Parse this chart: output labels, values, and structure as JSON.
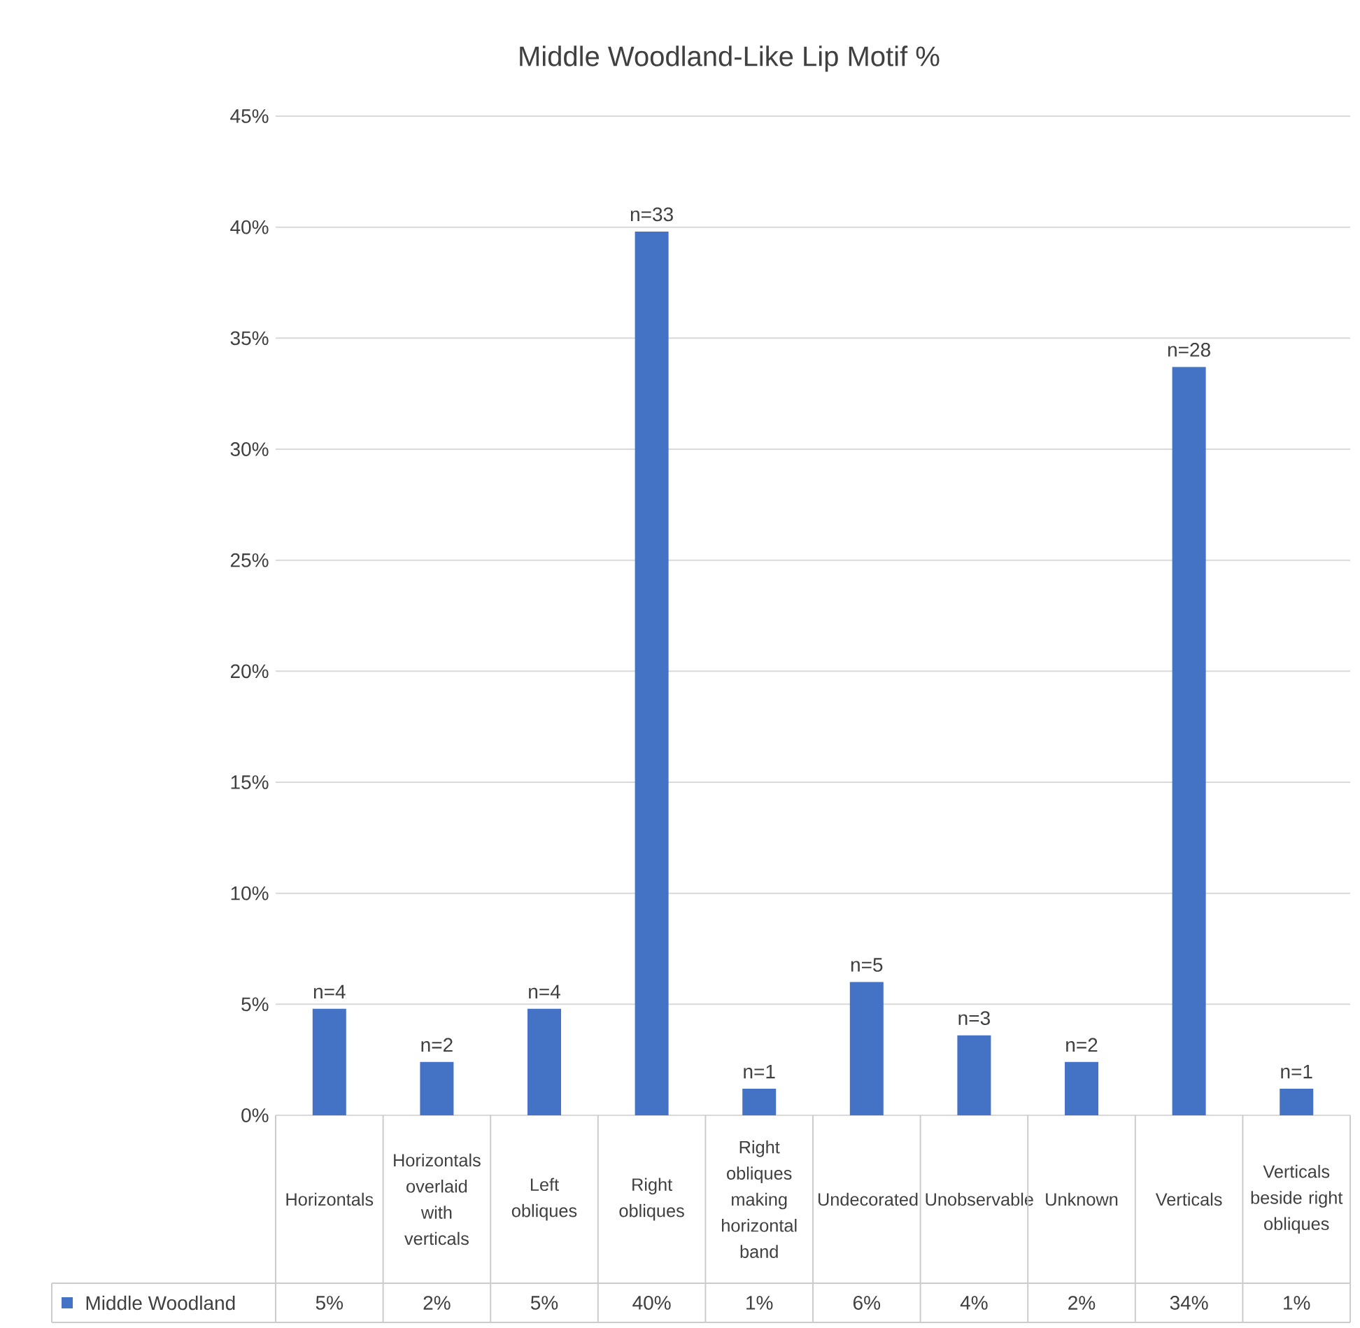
{
  "chart_data": {
    "type": "bar",
    "title": "Middle Woodland-Like Lip Motif %",
    "categories": [
      "Horizontals",
      "Horizontals overlaid with verticals",
      "Left obliques",
      "Right obliques",
      "Right obliques making horizontal band",
      "Undecorated",
      "Unobservable",
      "Unknown",
      "Verticals",
      "Verticals beside right obliques"
    ],
    "series": [
      {
        "name": "Middle Woodland",
        "color": "#4472c4",
        "values": [
          4.8,
          2.4,
          4.8,
          39.8,
          1.2,
          6.0,
          3.6,
          2.4,
          33.7,
          1.2
        ],
        "value_labels": [
          "5%",
          "2%",
          "5%",
          "40%",
          "1%",
          "6%",
          "4%",
          "2%",
          "34%",
          "1%"
        ]
      }
    ],
    "annotations": [
      {
        "text": "n=4",
        "x": "Horizontals",
        "y": 4.8
      },
      {
        "text": "n=2",
        "x": "Horizontals overlaid with verticals",
        "y": 2.4
      },
      {
        "text": "n=4",
        "x": "Left obliques",
        "y": 4.8
      },
      {
        "text": "n=33",
        "x": "Right obliques",
        "y": 39.8
      },
      {
        "text": "n=1",
        "x": "Right obliques making horizontal band",
        "y": 1.2
      },
      {
        "text": "n=5",
        "x": "Undecorated",
        "y": 6.0
      },
      {
        "text": "n=3",
        "x": "Unobservable",
        "y": 3.6
      },
      {
        "text": "n=2",
        "x": "Unknown",
        "y": 2.4
      },
      {
        "text": "n=28",
        "x": "Verticals",
        "y": 33.7
      },
      {
        "text": "n=1",
        "x": "Verticals beside right obliques",
        "y": 1.2
      }
    ],
    "ylim": [
      0,
      45
    ],
    "yticks": [
      {
        "value": 0,
        "label": "0%"
      },
      {
        "value": 5,
        "label": "5%"
      },
      {
        "value": 10,
        "label": "10%"
      },
      {
        "value": 15,
        "label": "15%"
      },
      {
        "value": 20,
        "label": "20%"
      },
      {
        "value": 25,
        "label": "25%"
      },
      {
        "value": 30,
        "label": "30%"
      },
      {
        "value": 35,
        "label": "35%"
      },
      {
        "value": 40,
        "label": "40%"
      },
      {
        "value": 45,
        "label": "45%"
      }
    ],
    "grid": "y",
    "legend": "bottom"
  }
}
